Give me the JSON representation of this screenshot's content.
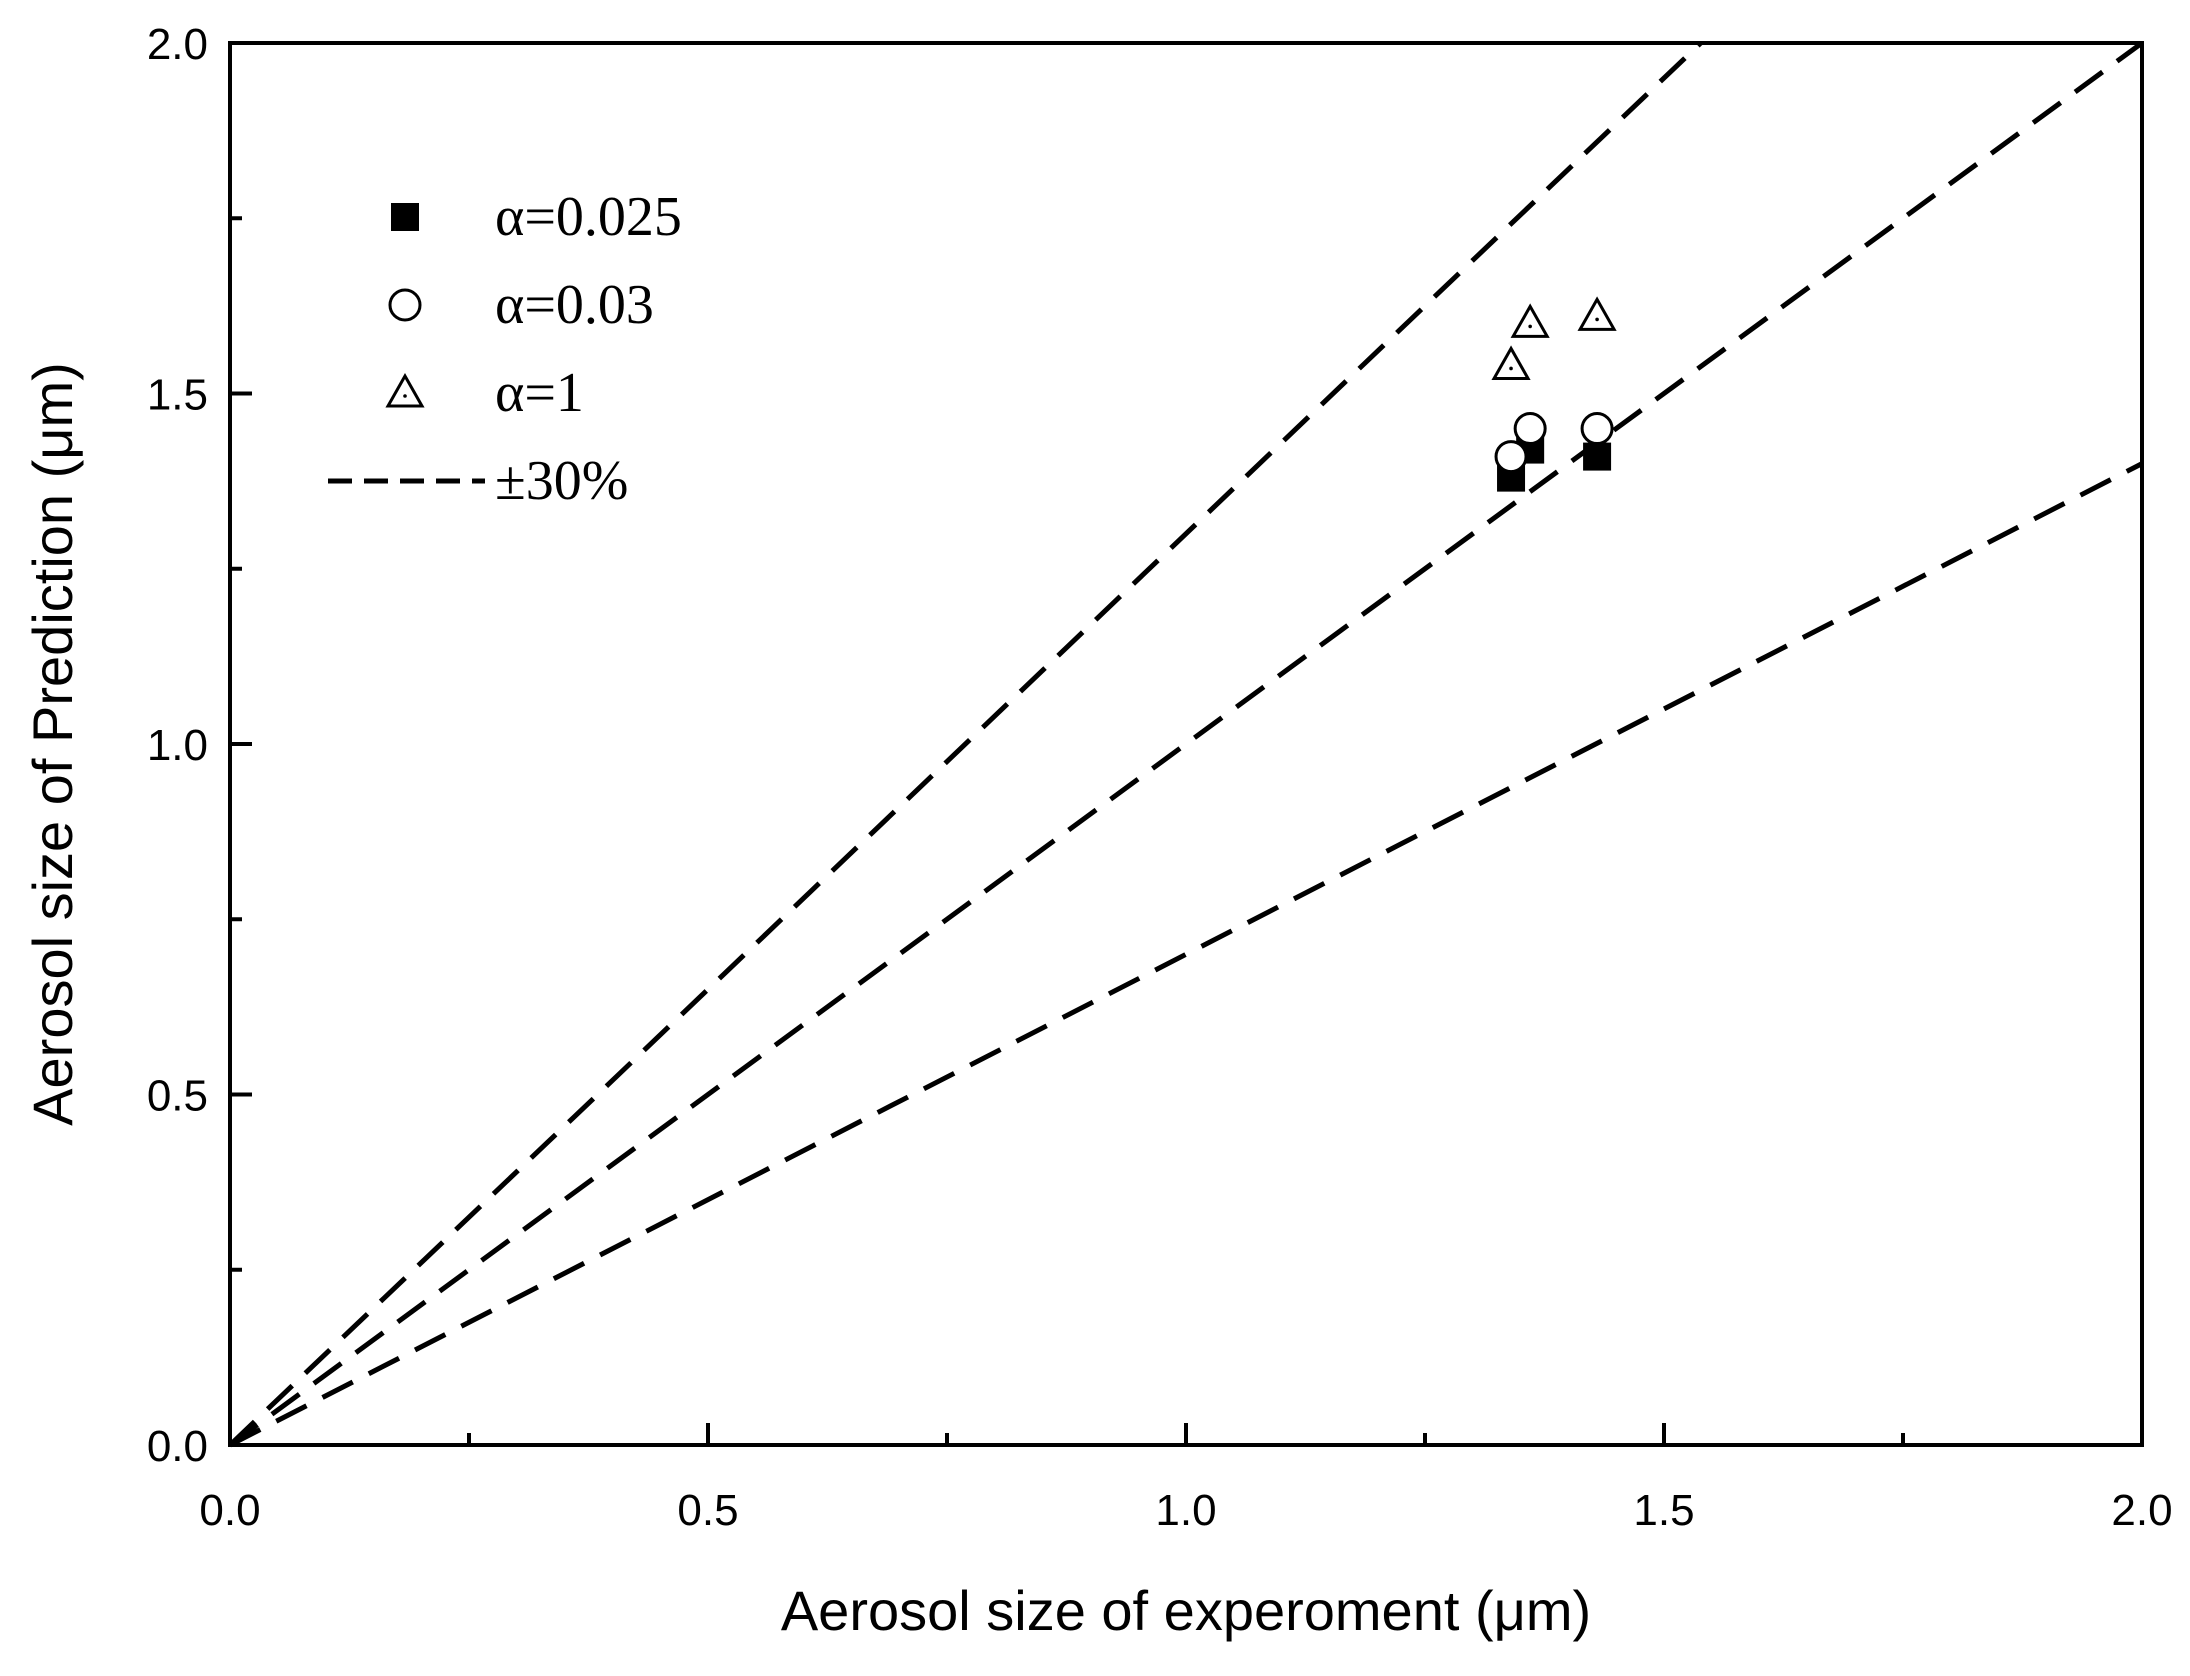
{
  "chart_data": {
    "type": "scatter",
    "title": "",
    "xlabel": "Aerosol size of experoment (μm)",
    "ylabel": "Aerosol size of Prediction (μm)",
    "xlim": [
      0.0,
      2.0
    ],
    "ylim": [
      0.0,
      2.0
    ],
    "x_ticks": [
      "0.0",
      "0.5",
      "1.0",
      "1.5",
      "2.0"
    ],
    "y_ticks": [
      "0.0",
      "0.5",
      "1.0",
      "1.5",
      "2.0"
    ],
    "x_minor_step": 0.25,
    "y_minor_step": 0.25,
    "grid": false,
    "legend_position": "upper-left",
    "series": [
      {
        "name": "α=0.025",
        "marker": "filled-square",
        "x": [
          1.34,
          1.36,
          1.43
        ],
        "y": [
          1.38,
          1.42,
          1.41
        ]
      },
      {
        "name": "α=0.03",
        "marker": "open-circle",
        "x": [
          1.34,
          1.36,
          1.43
        ],
        "y": [
          1.41,
          1.45,
          1.45
        ]
      },
      {
        "name": "α=1",
        "marker": "open-triangle",
        "x": [
          1.34,
          1.36,
          1.43
        ],
        "y": [
          1.54,
          1.6,
          1.61
        ]
      }
    ],
    "reference_lines": {
      "name": "±30%",
      "style": "dashed",
      "slopes": [
        1.3,
        1.0,
        0.7
      ],
      "x_range": [
        0.0,
        2.0
      ]
    },
    "colors": {
      "ink": "#000000",
      "background": "#ffffff"
    }
  }
}
